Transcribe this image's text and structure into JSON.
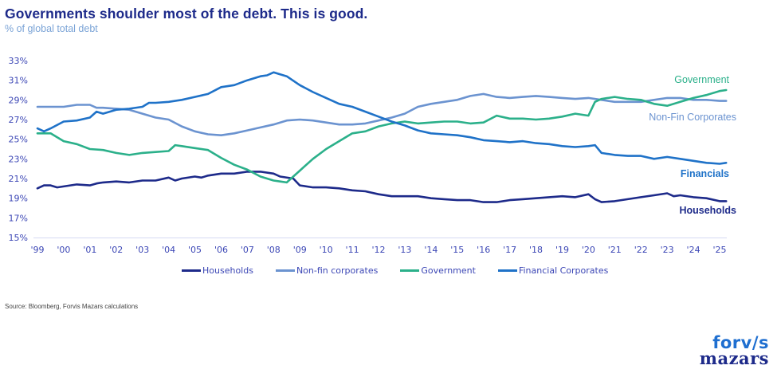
{
  "header": {
    "title": "Governments shoulder most of the debt. This is good.",
    "subtitle": "% of global total debt"
  },
  "source": "Source: Bloomberg, Forvis Mazars calculations",
  "logo": {
    "line1": "forv/s",
    "line2": "mazars"
  },
  "colors": {
    "households": "#1d2a8a",
    "nonfin": "#6b93d0",
    "government": "#2bb08a",
    "financial": "#1f72c8",
    "axis_text": "#3b46b5",
    "axis_line": "#d6d9f2"
  },
  "chart_data": {
    "type": "line",
    "title": "Governments shoulder most of the debt. This is good.",
    "subtitle": "% of global total debt",
    "xlabel": "",
    "ylabel": "",
    "ylim": [
      15,
      33
    ],
    "xlim": [
      1999,
      2025.25
    ],
    "grid": false,
    "legend_position": "bottom",
    "y_ticks": [
      "15%",
      "17%",
      "19%",
      "21%",
      "23%",
      "25%",
      "27%",
      "29%",
      "31%",
      "33%"
    ],
    "y_tick_values": [
      15,
      17,
      19,
      21,
      23,
      25,
      27,
      29,
      31,
      33
    ],
    "x_ticks": [
      "'99",
      "'00",
      "'01",
      "'02",
      "'03",
      "'04",
      "'05",
      "'06",
      "'07",
      "'08",
      "'09",
      "'10",
      "'11",
      "'12",
      "'13",
      "'14",
      "'15",
      "'16",
      "'17",
      "'18",
      "'19",
      "'20",
      "'21",
      "'22",
      "'23",
      "'24",
      "'25"
    ],
    "x_tick_values": [
      1999,
      2000,
      2001,
      2002,
      2003,
      2004,
      2005,
      2006,
      2007,
      2008,
      2009,
      2010,
      2011,
      2012,
      2013,
      2014,
      2015,
      2016,
      2017,
      2018,
      2019,
      2020,
      2021,
      2022,
      2023,
      2024,
      2025
    ],
    "series": [
      {
        "key": "households",
        "name": "Households",
        "end_label": "Households",
        "x": [
          1999,
          1999.25,
          1999.5,
          1999.75,
          2000,
          2000.5,
          2001,
          2001.25,
          2001.5,
          2002,
          2002.5,
          2003,
          2003.5,
          2004,
          2004.25,
          2004.5,
          2005,
          2005.25,
          2005.5,
          2006,
          2006.5,
          2007,
          2007.5,
          2008,
          2008.25,
          2008.75,
          2009,
          2009.5,
          2010,
          2010.5,
          2011,
          2011.5,
          2012,
          2012.5,
          2013,
          2013.5,
          2014,
          2014.5,
          2015,
          2015.5,
          2016,
          2016.5,
          2017,
          2017.5,
          2018,
          2018.5,
          2019,
          2019.5,
          2020,
          2020.25,
          2020.5,
          2021,
          2021.5,
          2022,
          2022.5,
          2023,
          2023.25,
          2023.5,
          2024,
          2024.5,
          2025,
          2025.25
        ],
        "values": [
          20.0,
          20.3,
          20.3,
          20.1,
          20.2,
          20.4,
          20.3,
          20.5,
          20.6,
          20.7,
          20.6,
          20.8,
          20.8,
          21.1,
          20.8,
          21.0,
          21.2,
          21.1,
          21.3,
          21.5,
          21.5,
          21.7,
          21.7,
          21.5,
          21.2,
          21.0,
          20.3,
          20.1,
          20.1,
          20.0,
          19.8,
          19.7,
          19.4,
          19.2,
          19.2,
          19.2,
          19.0,
          18.9,
          18.8,
          18.8,
          18.6,
          18.6,
          18.8,
          18.9,
          19.0,
          19.1,
          19.2,
          19.1,
          19.4,
          18.9,
          18.6,
          18.7,
          18.9,
          19.1,
          19.3,
          19.5,
          19.2,
          19.3,
          19.1,
          19.0,
          18.7,
          18.7
        ]
      },
      {
        "key": "nonfin",
        "name": "Non-fin corporates",
        "end_label": "Non-Fin Corporates",
        "x": [
          1999,
          1999.5,
          2000,
          2000.5,
          2001,
          2001.25,
          2001.5,
          2002,
          2002.5,
          2003,
          2003.5,
          2004,
          2004.5,
          2005,
          2005.5,
          2006,
          2006.5,
          2007,
          2007.5,
          2008,
          2008.5,
          2009,
          2009.5,
          2010,
          2010.5,
          2011,
          2011.5,
          2012,
          2012.5,
          2013,
          2013.5,
          2014,
          2014.5,
          2015,
          2015.5,
          2016,
          2016.5,
          2017,
          2017.5,
          2018,
          2018.5,
          2019,
          2019.5,
          2020,
          2020.5,
          2021,
          2021.5,
          2022,
          2022.5,
          2023,
          2023.5,
          2024,
          2024.5,
          2025,
          2025.25
        ],
        "values": [
          28.3,
          28.3,
          28.3,
          28.5,
          28.5,
          28.2,
          28.2,
          28.1,
          28.0,
          27.6,
          27.2,
          27.0,
          26.3,
          25.8,
          25.5,
          25.4,
          25.6,
          25.9,
          26.2,
          26.5,
          26.9,
          27.0,
          26.9,
          26.7,
          26.5,
          26.5,
          26.6,
          26.9,
          27.2,
          27.6,
          28.3,
          28.6,
          28.8,
          29.0,
          29.4,
          29.6,
          29.3,
          29.2,
          29.3,
          29.4,
          29.3,
          29.2,
          29.1,
          29.2,
          29.0,
          28.8,
          28.8,
          28.8,
          29.0,
          29.2,
          29.2,
          29.0,
          29.0,
          28.9,
          28.9
        ]
      },
      {
        "key": "government",
        "name": "Government",
        "end_label": "Government",
        "x": [
          1999,
          1999.5,
          2000,
          2000.5,
          2001,
          2001.5,
          2002,
          2002.5,
          2003,
          2003.5,
          2004,
          2004.25,
          2004.5,
          2005,
          2005.5,
          2006,
          2006.5,
          2007,
          2007.5,
          2008,
          2008.25,
          2008.5,
          2009,
          2009.5,
          2010,
          2010.5,
          2011,
          2011.5,
          2012,
          2012.5,
          2013,
          2013.5,
          2014,
          2014.5,
          2015,
          2015.5,
          2016,
          2016.5,
          2017,
          2017.5,
          2018,
          2018.5,
          2019,
          2019.5,
          2020,
          2020.25,
          2020.5,
          2021,
          2021.5,
          2022,
          2022.5,
          2023,
          2023.5,
          2024,
          2024.5,
          2025,
          2025.25
        ],
        "values": [
          25.6,
          25.6,
          24.8,
          24.5,
          24.0,
          23.9,
          23.6,
          23.4,
          23.6,
          23.7,
          23.8,
          24.4,
          24.3,
          24.1,
          23.9,
          23.1,
          22.4,
          21.9,
          21.2,
          20.8,
          20.7,
          20.6,
          21.8,
          23.0,
          24.0,
          24.8,
          25.6,
          25.8,
          26.3,
          26.6,
          26.8,
          26.6,
          26.7,
          26.8,
          26.8,
          26.6,
          26.7,
          27.4,
          27.1,
          27.1,
          27.0,
          27.1,
          27.3,
          27.6,
          27.4,
          28.8,
          29.1,
          29.3,
          29.1,
          29.0,
          28.6,
          28.4,
          28.8,
          29.2,
          29.5,
          29.9,
          30.0
        ]
      },
      {
        "key": "financial",
        "name": "Financial Corporates",
        "end_label": "Financials",
        "x": [
          1999,
          1999.25,
          1999.5,
          2000,
          2000.5,
          2001,
          2001.25,
          2001.5,
          2002,
          2002.5,
          2003,
          2003.25,
          2003.5,
          2004,
          2004.5,
          2005,
          2005.5,
          2006,
          2006.5,
          2007,
          2007.5,
          2007.75,
          2008,
          2008.25,
          2008.5,
          2009,
          2009.5,
          2010,
          2010.5,
          2011,
          2011.5,
          2012,
          2012.5,
          2013,
          2013.5,
          2014,
          2014.5,
          2015,
          2015.5,
          2016,
          2016.5,
          2017,
          2017.5,
          2018,
          2018.5,
          2019,
          2019.5,
          2020,
          2020.25,
          2020.5,
          2021,
          2021.5,
          2022,
          2022.5,
          2023,
          2023.5,
          2024,
          2024.5,
          2025,
          2025.25
        ],
        "values": [
          26.1,
          25.8,
          26.1,
          26.8,
          26.9,
          27.2,
          27.8,
          27.6,
          28.0,
          28.1,
          28.3,
          28.7,
          28.7,
          28.8,
          29.0,
          29.3,
          29.6,
          30.3,
          30.5,
          31.0,
          31.4,
          31.5,
          31.8,
          31.6,
          31.4,
          30.5,
          29.8,
          29.2,
          28.6,
          28.3,
          27.8,
          27.3,
          26.8,
          26.4,
          25.9,
          25.6,
          25.5,
          25.4,
          25.2,
          24.9,
          24.8,
          24.7,
          24.8,
          24.6,
          24.5,
          24.3,
          24.2,
          24.3,
          24.4,
          23.6,
          23.4,
          23.3,
          23.3,
          23.0,
          23.2,
          23.0,
          22.8,
          22.6,
          22.5,
          22.6
        ]
      }
    ]
  }
}
